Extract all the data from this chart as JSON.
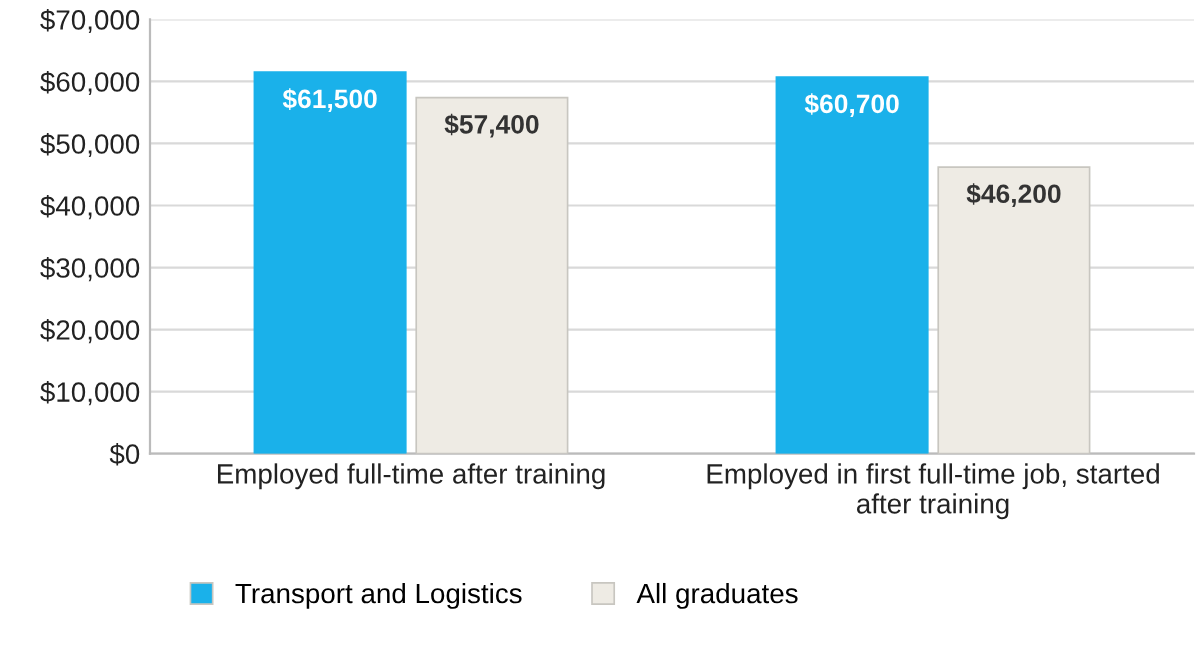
{
  "chart_data": {
    "type": "bar",
    "categories": [
      "Employed full-time after training",
      "Employed in first full-time job, started\nafter training"
    ],
    "series": [
      {
        "name": "Transport and Logistics",
        "color": "#1ab1ea",
        "values": [
          61500,
          60700
        ],
        "value_labels": [
          "$61,500",
          "$60,700"
        ]
      },
      {
        "name": "All graduates",
        "color": "#eeebe4",
        "values": [
          57400,
          46200
        ],
        "value_labels": [
          "$57,400",
          "$46,200"
        ]
      }
    ],
    "ylim": [
      0,
      70000
    ],
    "yticks": [
      {
        "value": 0,
        "label": "$0"
      },
      {
        "value": 10000,
        "label": "$10,000"
      },
      {
        "value": 20000,
        "label": "$20,000"
      },
      {
        "value": 30000,
        "label": "$30,000"
      },
      {
        "value": 40000,
        "label": "$40,000"
      },
      {
        "value": 50000,
        "label": "$50,000"
      },
      {
        "value": 60000,
        "label": "$60,000"
      },
      {
        "value": 70000,
        "label": "$70,000"
      }
    ],
    "grid": "y",
    "legend": "bottom"
  }
}
